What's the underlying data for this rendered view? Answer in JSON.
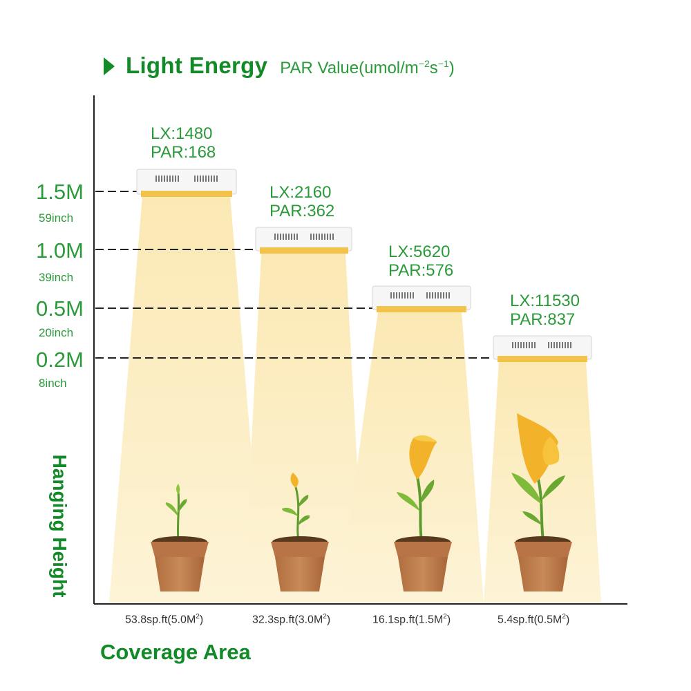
{
  "title": {
    "main": "Light Energy",
    "sub": "PAR Value(umol/m",
    "sub_sup1": "−2",
    "sub_mid": "s",
    "sub_sup2": "−1",
    "sub_end": ")"
  },
  "axes": {
    "y_label": "Hanging Height",
    "x_label": "Coverage Area"
  },
  "heights": [
    {
      "meters": "1.5M",
      "inches": "59inch"
    },
    {
      "meters": "1.0M",
      "inches": "39inch"
    },
    {
      "meters": "0.5M",
      "inches": "20inch"
    },
    {
      "meters": "0.2M",
      "inches": "8inch"
    }
  ],
  "lights": [
    {
      "lx": "LX:1480",
      "par": "PAR:168",
      "coverage": "53.8sp.ft(5.0M",
      "coverage_sup": "2",
      "coverage_end": ")"
    },
    {
      "lx": "LX:2160",
      "par": "PAR:362",
      "coverage": "32.3sp.ft(3.0M",
      "coverage_sup": "2",
      "coverage_end": ")"
    },
    {
      "lx": "LX:5620",
      "par": "PAR:576",
      "coverage": "16.1sp.ft(1.5M",
      "coverage_sup": "2",
      "coverage_end": ")"
    },
    {
      "lx": "LX:11530",
      "par": "PAR:837",
      "coverage": "5.4sp.ft(0.5M",
      "coverage_sup": "2",
      "coverage_end": ")"
    }
  ],
  "colors": {
    "brand_green": "#128a28",
    "label_green": "#2a9a3a",
    "beam": "#fbecc0",
    "pot": "#c0804f"
  }
}
